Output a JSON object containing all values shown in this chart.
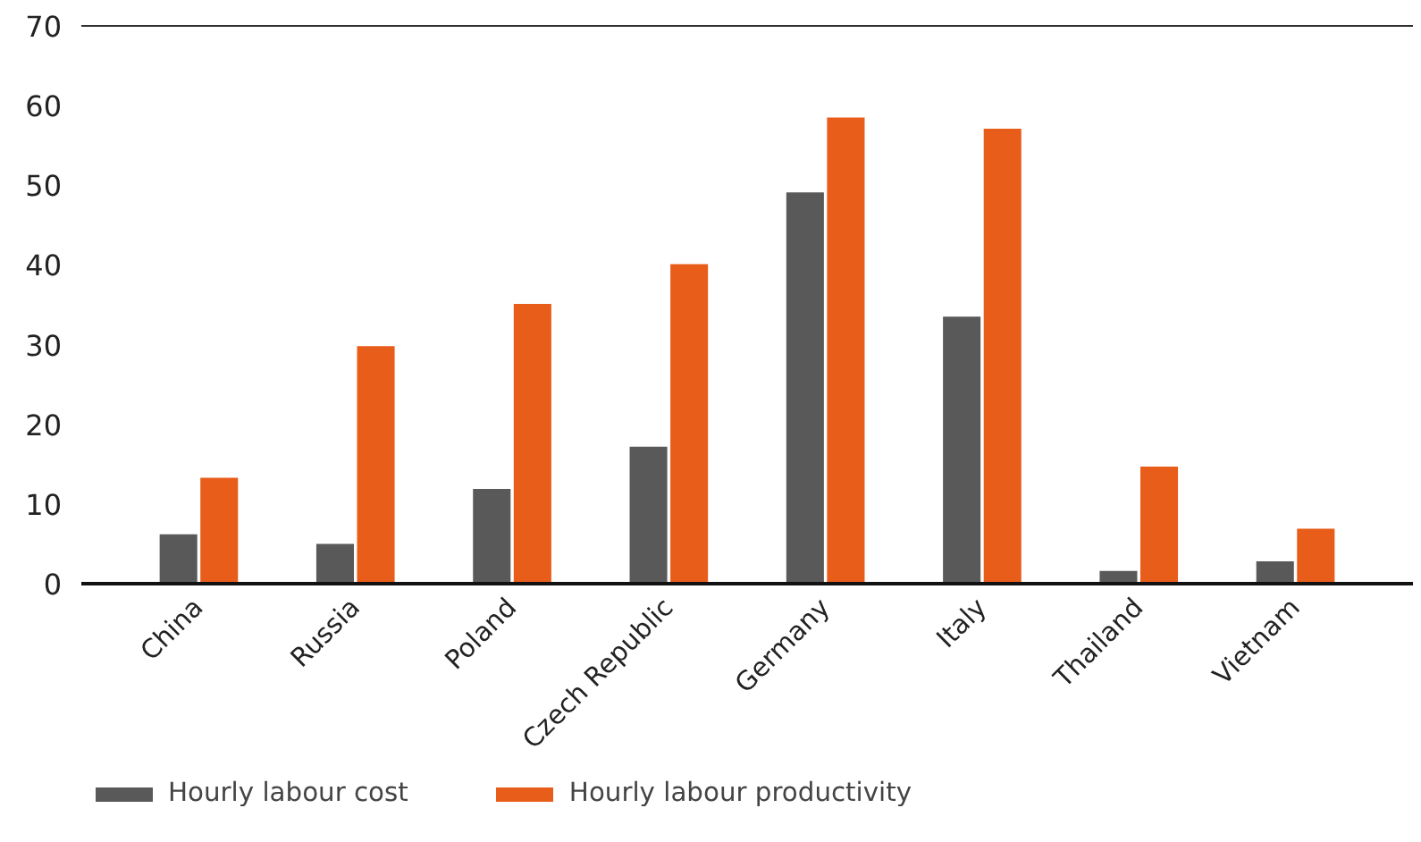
{
  "chart_data": {
    "type": "bar",
    "categories": [
      "China",
      "Russia",
      "Poland",
      "Czech Republic",
      "Germany",
      "Italy",
      "Thailand",
      "Vietnam"
    ],
    "series": [
      {
        "name": "Hourly labour cost",
        "color": "#595959",
        "values": [
          6.2,
          5.0,
          11.9,
          17.2,
          49.1,
          33.5,
          1.6,
          2.8
        ]
      },
      {
        "name": "Hourly labour productivity",
        "color": "#e85d1a",
        "values": [
          13.3,
          29.8,
          35.1,
          40.1,
          58.5,
          57.1,
          14.7,
          6.9
        ]
      }
    ],
    "ylim": [
      0,
      70
    ],
    "yticks": [
      0,
      10,
      20,
      30,
      40,
      50,
      60,
      70
    ],
    "grid": false,
    "legend": "bottom left"
  }
}
